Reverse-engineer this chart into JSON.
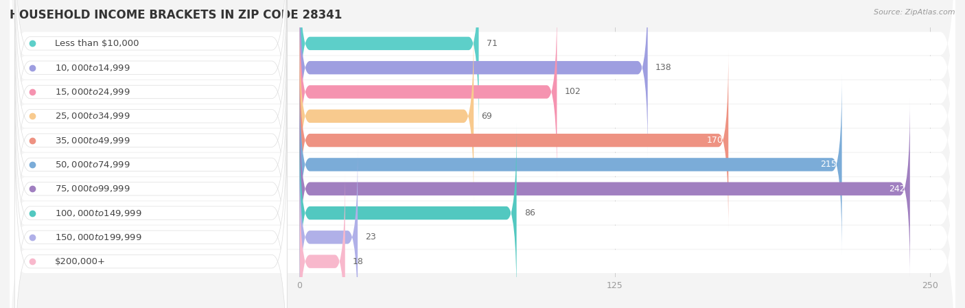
{
  "title": "HOUSEHOLD INCOME BRACKETS IN ZIP CODE 28341",
  "source": "Source: ZipAtlas.com",
  "categories": [
    "Less than $10,000",
    "$10,000 to $14,999",
    "$15,000 to $24,999",
    "$25,000 to $34,999",
    "$35,000 to $49,999",
    "$50,000 to $74,999",
    "$75,000 to $99,999",
    "$100,000 to $149,999",
    "$150,000 to $199,999",
    "$200,000+"
  ],
  "values": [
    71,
    138,
    102,
    69,
    170,
    215,
    242,
    86,
    23,
    18
  ],
  "bar_colors": [
    "#5DCFC9",
    "#9E9EE0",
    "#F593B0",
    "#F8CA8E",
    "#EE9282",
    "#7BACD8",
    "#A07FC0",
    "#52C8C0",
    "#B0B0E8",
    "#F8B8CC"
  ],
  "dot_colors": [
    "#5DCFC9",
    "#9E9EE0",
    "#F593B0",
    "#F8CA8E",
    "#EE9282",
    "#7BACD8",
    "#A07FC0",
    "#52C8C0",
    "#B0B0E8",
    "#F8B8CC"
  ],
  "xlim": [
    -115,
    260
  ],
  "xticks": [
    0,
    125,
    250
  ],
  "background_color": "#f4f4f4",
  "row_bg_color": "#efefef",
  "title_fontsize": 12,
  "label_fontsize": 9.5,
  "value_fontsize": 9,
  "bar_height": 0.55
}
